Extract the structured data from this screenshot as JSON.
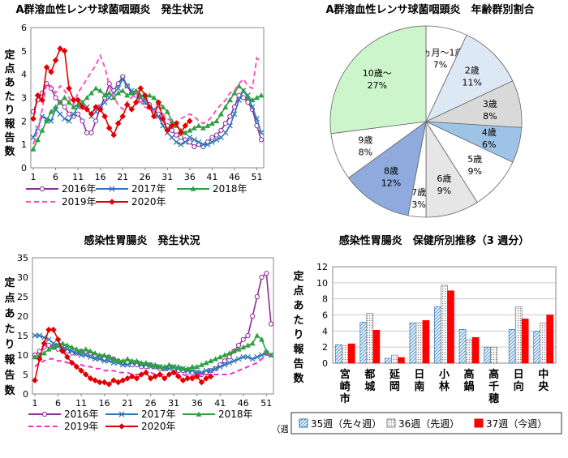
{
  "chart_data": [
    {
      "id": "strep_weekly",
      "type": "line",
      "title": "A群溶血性レンサ球菌咽頭炎　発生状況",
      "ylabel": "定点あたり報告数",
      "ylim": [
        0,
        6
      ],
      "yticks": [
        "0",
        "1",
        "2",
        "3",
        "4",
        "5",
        "6"
      ],
      "xticks": [
        "1",
        "6",
        "11",
        "16",
        "21",
        "26",
        "31",
        "36",
        "41",
        "46",
        "51"
      ],
      "x": [
        1,
        2,
        3,
        4,
        5,
        6,
        7,
        8,
        9,
        10,
        11,
        12,
        13,
        14,
        15,
        16,
        17,
        18,
        19,
        20,
        21,
        22,
        23,
        24,
        25,
        26,
        27,
        28,
        29,
        30,
        31,
        32,
        33,
        34,
        35,
        36,
        37,
        38,
        39,
        40,
        41,
        42,
        43,
        44,
        45,
        46,
        47,
        48,
        49,
        50,
        51,
        52
      ],
      "series": [
        {
          "name": "2016年",
          "color": "#8e2a9b",
          "dash": false,
          "marker": "circle",
          "values": [
            2.4,
            2.9,
            3.2,
            3.6,
            3.4,
            3.0,
            2.8,
            2.6,
            2.3,
            2.2,
            2.3,
            2.0,
            1.5,
            1.5,
            2.0,
            2.6,
            3.0,
            3.6,
            3.3,
            3.6,
            3.9,
            3.5,
            3.2,
            3.1,
            2.9,
            2.8,
            2.7,
            2.4,
            2.3,
            2.0,
            1.8,
            1.6,
            1.4,
            1.3,
            1.2,
            1.1,
            0.9,
            1.0,
            0.9,
            1.1,
            1.3,
            1.4,
            1.6,
            1.9,
            2.2,
            2.6,
            3.1,
            3.0,
            2.8,
            2.5,
            1.8,
            1.2
          ]
        },
        {
          "name": "2017年",
          "color": "#2e75b6",
          "dash": false,
          "marker": "x",
          "values": [
            1.3,
            1.7,
            2.2,
            2.1,
            2.0,
            2.5,
            2.3,
            2.1,
            2.0,
            2.3,
            2.6,
            2.8,
            2.6,
            2.2,
            2.4,
            2.6,
            2.8,
            3.0,
            3.2,
            3.4,
            3.8,
            3.5,
            3.3,
            3.2,
            3.0,
            2.8,
            2.6,
            2.5,
            2.2,
            1.8,
            1.5,
            1.3,
            1.1,
            1.0,
            1.1,
            1.3,
            1.2,
            1.1,
            1.0,
            1.0,
            1.1,
            1.2,
            1.3,
            1.5,
            1.8,
            2.3,
            2.9,
            3.3,
            3.1,
            2.6,
            2.1,
            1.5
          ]
        },
        {
          "name": "2018年",
          "color": "#2ea043",
          "dash": false,
          "marker": "triangle",
          "values": [
            0.8,
            1.2,
            1.6,
            2.0,
            2.4,
            2.6,
            2.8,
            3.0,
            2.8,
            2.6,
            2.7,
            2.8,
            3.0,
            3.2,
            3.4,
            3.3,
            3.1,
            3.2,
            3.0,
            3.2,
            3.3,
            3.1,
            3.2,
            3.3,
            3.1,
            3.0,
            3.1,
            3.0,
            2.8,
            2.6,
            2.4,
            2.0,
            1.8,
            1.6,
            1.5,
            1.6,
            1.7,
            1.8,
            1.7,
            1.8,
            1.9,
            2.0,
            2.3,
            2.6,
            2.9,
            3.2,
            3.5,
            3.3,
            3.0,
            2.9,
            3.0,
            3.1
          ]
        },
        {
          "name": "2019年",
          "color": "#ff55bb",
          "dash": true,
          "marker": "none",
          "values": [
            1.0,
            1.6,
            2.5,
            3.6,
            3.5,
            3.2,
            3.5,
            3.3,
            3.0,
            2.7,
            3.2,
            3.5,
            3.8,
            4.1,
            4.4,
            4.8,
            4.3,
            3.5,
            3.0,
            2.7,
            2.5,
            2.8,
            3.0,
            3.2,
            2.8,
            2.6,
            2.5,
            2.4,
            2.6,
            2.3,
            2.1,
            2.0,
            1.9,
            2.1,
            2.2,
            2.3,
            2.2,
            2.0,
            1.9,
            2.0,
            2.2,
            2.5,
            2.7,
            2.9,
            3.2,
            3.3,
            3.6,
            3.8,
            3.5,
            3.4,
            4.7,
            4.5
          ]
        },
        {
          "name": "2020年",
          "color": "#e00000",
          "dash": false,
          "marker": "diamond",
          "values": [
            2.1,
            3.1,
            2.9,
            4.3,
            4.1,
            4.6,
            5.1,
            5.0,
            3.4,
            2.9,
            2.9,
            2.6,
            2.5,
            2.3,
            2.6,
            2.5,
            2.2,
            1.7,
            1.4,
            1.9,
            2.2,
            2.7,
            2.5,
            2.8,
            3.4,
            3.1,
            2.6,
            2.2,
            2.8,
            2.1,
            1.6,
            1.8,
            1.9,
            1.5,
            1.8,
            2.0,
            null,
            null,
            null,
            null,
            null,
            null,
            null,
            null,
            null,
            null,
            null,
            null,
            null,
            null,
            null,
            null
          ]
        }
      ],
      "legend_position": "bottom"
    },
    {
      "id": "strep_age_pie",
      "type": "pie",
      "title": "A群溶血性レンサ球菌咽頭炎　年齢群別割合",
      "slices": [
        {
          "label": "6ヵ月〜1歳",
          "value": 7,
          "pct": "7%",
          "color": "#ffffff"
        },
        {
          "label": "2歳",
          "value": 11,
          "pct": "11%",
          "color": "#dde8f5"
        },
        {
          "label": "3歳",
          "value": 8,
          "pct": "8%",
          "color": "#d9d9d9"
        },
        {
          "label": "4歳",
          "value": 6,
          "pct": "6%",
          "color": "#9dc3e6"
        },
        {
          "label": "5歳",
          "value": 9,
          "pct": "9%",
          "color": "#ffffff"
        },
        {
          "label": "6歳",
          "value": 9,
          "pct": "9%",
          "color": "#e7e6e6"
        },
        {
          "label": "7歳",
          "value": 3,
          "pct": "3%",
          "color": "#ffffff"
        },
        {
          "label": "8歳",
          "value": 12,
          "pct": "12%",
          "color": "#8faadc"
        },
        {
          "label": "9歳",
          "value": 8,
          "pct": "8%",
          "color": "#ffffff"
        },
        {
          "label": "10歳〜",
          "value": 27,
          "pct": "27%",
          "color": "#ccf5cc"
        }
      ]
    },
    {
      "id": "gastro_weekly",
      "type": "line",
      "title": "感染性胃腸炎　発生状況",
      "ylabel": "定点あたり報告数",
      "ylim": [
        0,
        35
      ],
      "yticks": [
        "0",
        "5",
        "10",
        "15",
        "20",
        "25",
        "30",
        "35"
      ],
      "xticks": [
        "1",
        "6",
        "11",
        "16",
        "21",
        "26",
        "31",
        "36",
        "41",
        "46",
        "51"
      ],
      "xunit": "（週）",
      "x": [
        1,
        2,
        3,
        4,
        5,
        6,
        7,
        8,
        9,
        10,
        11,
        12,
        13,
        14,
        15,
        16,
        17,
        18,
        19,
        20,
        21,
        22,
        23,
        24,
        25,
        26,
        27,
        28,
        29,
        30,
        31,
        32,
        33,
        34,
        35,
        36,
        37,
        38,
        39,
        40,
        41,
        42,
        43,
        44,
        45,
        46,
        47,
        48,
        49,
        50,
        51,
        52
      ],
      "series": [
        {
          "name": "2016年",
          "color": "#8e2a9b",
          "dash": false,
          "marker": "circle",
          "values": [
            10.0,
            11.0,
            12.0,
            12.5,
            12.0,
            11.5,
            11.0,
            11.0,
            10.5,
            10.5,
            11.0,
            11.0,
            10.5,
            10.0,
            9.5,
            9.0,
            9.5,
            9.0,
            8.5,
            8.0,
            8.0,
            7.5,
            7.5,
            7.0,
            7.0,
            7.5,
            7.0,
            6.5,
            6.5,
            7.0,
            6.5,
            6.0,
            6.0,
            5.5,
            5.5,
            5.5,
            5.0,
            5.5,
            6.0,
            6.5,
            7.5,
            8.5,
            9.5,
            11.0,
            12.5,
            14.0,
            15.0,
            20.0,
            25.0,
            30.0,
            31.0,
            18.0
          ]
        },
        {
          "name": "2017年",
          "color": "#2e75b6",
          "dash": false,
          "marker": "x",
          "values": [
            15.0,
            15.0,
            14.5,
            14.0,
            13.0,
            12.5,
            12.0,
            11.5,
            11.0,
            10.5,
            10.0,
            10.0,
            9.5,
            9.0,
            9.0,
            8.5,
            8.5,
            8.0,
            8.0,
            7.5,
            7.5,
            8.0,
            8.0,
            7.5,
            7.5,
            7.0,
            7.0,
            7.0,
            6.5,
            6.5,
            7.0,
            6.5,
            6.5,
            6.0,
            6.0,
            5.5,
            5.5,
            6.0,
            6.0,
            6.5,
            7.0,
            7.5,
            8.0,
            8.5,
            9.0,
            9.5,
            9.5,
            9.0,
            9.5,
            10.0,
            10.5,
            10.0
          ]
        },
        {
          "name": "2018年",
          "color": "#2ea043",
          "dash": false,
          "marker": "triangle",
          "values": [
            9.5,
            10.0,
            10.5,
            11.5,
            12.0,
            12.5,
            13.0,
            12.5,
            12.0,
            11.5,
            11.0,
            11.5,
            11.0,
            10.5,
            10.0,
            10.0,
            9.5,
            9.0,
            8.5,
            8.5,
            9.0,
            8.5,
            8.5,
            8.0,
            8.0,
            7.5,
            7.5,
            7.0,
            7.0,
            7.5,
            7.0,
            7.0,
            6.5,
            6.5,
            7.0,
            7.0,
            7.5,
            8.0,
            8.5,
            9.0,
            9.5,
            10.0,
            10.5,
            11.0,
            11.5,
            12.0,
            12.5,
            13.0,
            15.0,
            14.0,
            11.0,
            10.0
          ]
        },
        {
          "name": "2019年",
          "color": "#ee33cc",
          "dash": true,
          "marker": "none",
          "values": [
            7.0,
            8.0,
            8.5,
            9.0,
            9.0,
            8.5,
            8.5,
            8.0,
            8.0,
            7.5,
            7.5,
            7.0,
            7.0,
            6.5,
            6.5,
            6.0,
            6.0,
            6.0,
            5.5,
            5.5,
            5.5,
            5.0,
            5.0,
            5.0,
            5.5,
            5.5,
            5.0,
            5.0,
            5.0,
            5.0,
            5.5,
            5.0,
            5.0,
            4.5,
            4.5,
            5.0,
            5.0,
            5.0,
            5.0,
            5.0,
            5.0,
            5.0,
            5.0,
            5.5,
            6.0,
            6.5,
            7.0,
            7.5,
            8.0,
            9.0,
            10.0,
            10.0
          ]
        },
        {
          "name": "2020年",
          "color": "#e00000",
          "dash": false,
          "marker": "diamond",
          "values": [
            3.5,
            9.0,
            13.0,
            16.5,
            16.5,
            14.0,
            11.0,
            9.5,
            8.0,
            7.0,
            6.0,
            5.0,
            4.0,
            3.5,
            3.0,
            3.0,
            2.5,
            3.5,
            3.0,
            3.5,
            4.0,
            4.5,
            4.0,
            5.0,
            5.5,
            4.0,
            4.5,
            5.0,
            4.0,
            5.0,
            5.5,
            4.5,
            3.5,
            4.0,
            4.0,
            4.5,
            3.0,
            4.0,
            4.5,
            null,
            null,
            null,
            null,
            null,
            null,
            null,
            null,
            null,
            null,
            null,
            null,
            null
          ]
        }
      ],
      "legend_position": "bottom"
    },
    {
      "id": "gastro_districts",
      "type": "bar",
      "title": "感染性胃腸炎　保健所別推移（3 週分）",
      "ylabel": "定点あたり報告数",
      "ylim": [
        0,
        12
      ],
      "yticks": [
        "0",
        "2",
        "4",
        "6",
        "8",
        "10",
        "12"
      ],
      "categories": [
        "宮崎市",
        "都城",
        "延岡",
        "日南",
        "小林",
        "高鍋",
        "高千穂",
        "日向",
        "中央"
      ],
      "series": [
        {
          "name": "35週（先々週）",
          "color": "#9dc3e6",
          "pattern": "diag",
          "values": [
            2.3,
            5.1,
            0.6,
            5.0,
            7.0,
            4.2,
            2.0,
            4.2,
            4.0
          ]
        },
        {
          "name": "36週（先週）",
          "color": "#d9d9d9",
          "pattern": "dots",
          "values": [
            2.2,
            6.2,
            1.0,
            5.0,
            9.7,
            2.9,
            2.0,
            7.0,
            5.0
          ]
        },
        {
          "name": "37週（今週）",
          "color": "#ff0000",
          "pattern": "solid",
          "values": [
            2.4,
            4.1,
            0.7,
            5.3,
            9.0,
            3.2,
            0,
            5.5,
            6.0
          ]
        }
      ],
      "legend_position": "bottom"
    }
  ]
}
